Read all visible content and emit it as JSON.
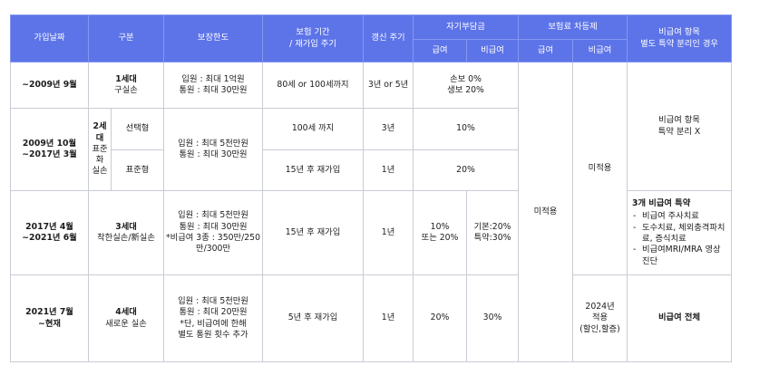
{
  "header": {
    "join_date": "가입날짜",
    "category": "구분",
    "coverage_limit": "보장한도",
    "period_line1": "보험 기간",
    "period_line2": "/ 재가입 주기",
    "renewal": "갱신 주기",
    "deductible": "자기부담금",
    "auto_premium": "보험료 차등제",
    "noncovered_line1": "비급여 항목",
    "noncovered_line2": "별도 특약 분리인 경우",
    "covered": "급여",
    "noncovered": "비급여",
    "covered2": "급여",
    "noncovered2": "비급여"
  },
  "rows": {
    "r1": {
      "date": "~2009년 9월",
      "gen": "1세대",
      "gen_name": "구실손",
      "limit1": "입원 : 최대 1억원",
      "limit2": "통원 : 최대 30만원",
      "period": "80세 or 100세까지",
      "renewal": "3년 or 5년",
      "ded1": "손보 0%",
      "ded2": "생보 20%"
    },
    "r2": {
      "date1": "2009년 10월",
      "date2": "~2017년 3월",
      "gen": "2세대",
      "gen_name1": "표준화",
      "gen_name2": "실손",
      "type_a": "선택형",
      "type_b": "표준형",
      "limit1": "입원 : 최대 5천만원",
      "limit2": "통원 : 최대 30만원",
      "period_a": "100세 까지",
      "period_b": "15년 후 재가입",
      "renewal_a": "3년",
      "renewal_b": "1년",
      "ded_a": "10%",
      "ded_b": "20%",
      "auto_noncovered": "미적용",
      "sep1": "비급여 항목",
      "sep2": "특약 분리 X"
    },
    "r3": {
      "date1": "2017년 4월",
      "date2": "~2021년 6월",
      "gen": "3세대",
      "gen_name": "착한실손/新실손",
      "limit1": "입원 : 최대 5천만원",
      "limit2": "통원 : 최대 30만원",
      "limit3": "*비급여 3종 : 350만/250",
      "limit4": "만/300만",
      "period": "15년 후 재가입",
      "renewal": "1년",
      "ded_cov1": "10%",
      "ded_cov2": "또는 20%",
      "ded_non1": "기본:20%",
      "ded_non2": "특약:30%",
      "sep_title": "3개 비급여 특약",
      "sep_items": [
        "비급여 주사치료",
        "도수치료, 체외충격파치료, 증식치료",
        "비급여MRI/MRA 영상 진단"
      ]
    },
    "r4": {
      "date1": "2021년 7월",
      "date2": "~현재",
      "gen": "4세대",
      "gen_name": "새로운 실손",
      "limit1": "입원 : 최대 5천만원",
      "limit2": "통원 : 최대 20만원",
      "limit3": "*단, 비급여에 한해",
      "limit4": "별도 통원 횟수 추가",
      "period": "5년 후 재가입",
      "renewal": "1년",
      "ded_cov": "20%",
      "ded_non": "30%",
      "auto1": "2024년",
      "auto2": "적용",
      "auto3": "(할인,할증)",
      "sep": "비급여 전체"
    },
    "auto_covered": "미적용"
  }
}
